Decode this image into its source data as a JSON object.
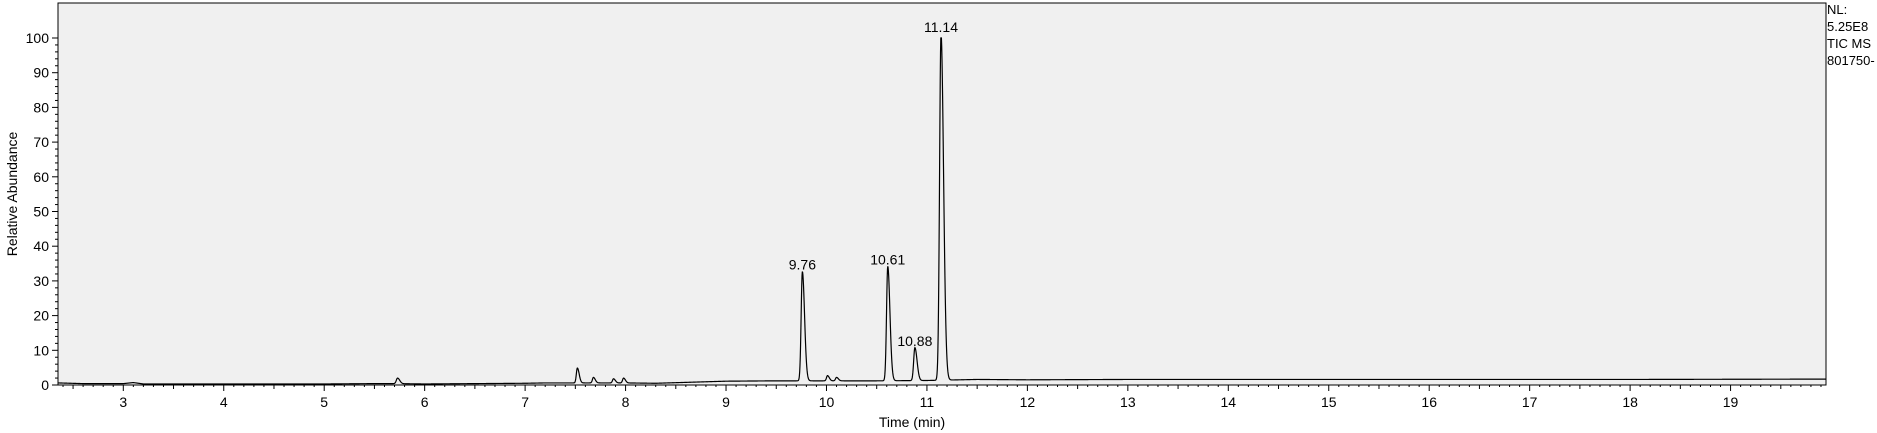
{
  "chart_data": {
    "type": "line",
    "xlabel": "Time (min)",
    "ylabel": "Relative Abundance",
    "xlim": [
      2.35,
      19.95
    ],
    "ylim": [
      0,
      100
    ],
    "x_ticks": [
      "3",
      "4",
      "5",
      "6",
      "7",
      "8",
      "9",
      "10",
      "11",
      "12",
      "13",
      "14",
      "15",
      "16",
      "17",
      "18",
      "19"
    ],
    "y_ticks": [
      "0",
      "10",
      "20",
      "30",
      "40",
      "50",
      "60",
      "70",
      "80",
      "90",
      "100"
    ],
    "grid": false,
    "side_labels": [
      "NL:",
      "5.25E8",
      "TIC  MS",
      "801750-"
    ],
    "baseline": [
      [
        2.35,
        0.6
      ],
      [
        2.6,
        0.4
      ],
      [
        3.0,
        0.4
      ],
      [
        3.1,
        0.7
      ],
      [
        3.2,
        0.3
      ],
      [
        4.0,
        0.3
      ],
      [
        5.0,
        0.3
      ],
      [
        5.5,
        0.4
      ],
      [
        5.7,
        0.4
      ],
      [
        6.0,
        0.3
      ],
      [
        7.0,
        0.5
      ],
      [
        7.2,
        0.6
      ],
      [
        7.4,
        0.6
      ],
      [
        7.6,
        0.6
      ],
      [
        8.0,
        0.6
      ],
      [
        8.3,
        0.5
      ],
      [
        9.0,
        1.1
      ],
      [
        9.5,
        1.2
      ],
      [
        10.5,
        1.2
      ],
      [
        11.0,
        1.3
      ],
      [
        11.5,
        1.6
      ],
      [
        12.0,
        1.5
      ],
      [
        13.0,
        1.6
      ],
      [
        14.0,
        1.6
      ],
      [
        15.0,
        1.6
      ],
      [
        16.0,
        1.6
      ],
      [
        17.0,
        1.6
      ],
      [
        18.0,
        1.6
      ],
      [
        19.95,
        1.7
      ]
    ],
    "peaks": [
      {
        "x": 5.73,
        "height": 1.6,
        "width": 0.012
      },
      {
        "x": 7.52,
        "height": 4.3,
        "width": 0.01
      },
      {
        "x": 7.68,
        "height": 1.6,
        "width": 0.01
      },
      {
        "x": 7.88,
        "height": 1.2,
        "width": 0.01
      },
      {
        "x": 7.98,
        "height": 1.4,
        "width": 0.01
      },
      {
        "x": 9.76,
        "height": 31.5,
        "width": 0.012
      },
      {
        "x": 10.01,
        "height": 1.5,
        "width": 0.01
      },
      {
        "x": 10.1,
        "height": 1.0,
        "width": 0.01
      },
      {
        "x": 10.61,
        "height": 33.0,
        "width": 0.012
      },
      {
        "x": 10.88,
        "height": 9.5,
        "width": 0.012
      },
      {
        "x": 11.14,
        "height": 100,
        "width": 0.014
      }
    ],
    "annotations": [
      {
        "label": "9.76",
        "x": 9.76,
        "y": 31.5
      },
      {
        "label": "10.61",
        "x": 10.61,
        "y": 33.0
      },
      {
        "label": "10.88",
        "x": 10.88,
        "y": 9.5
      },
      {
        "label": "11.14",
        "x": 11.14,
        "y": 100
      }
    ],
    "colors": {
      "plot_background": "#f0f0f0",
      "trace": "#000000",
      "axis": "#000000"
    }
  }
}
